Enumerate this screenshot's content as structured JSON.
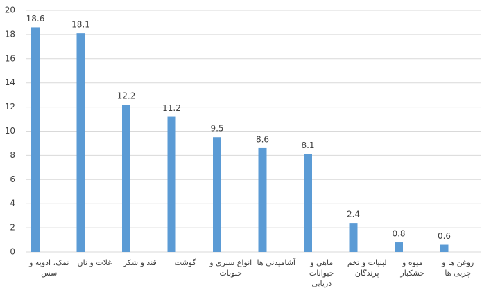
{
  "chart_data": {
    "type": "bar",
    "categories": [
      "نمک، ادویه و سس",
      "غلات و نان",
      "قند و شکر",
      "گوشت",
      "انواع سبزی و حبوبات",
      "آشامیدنی ها",
      "ماهی و حیوانات دریایی",
      "لبنیات و تخم پرندگان",
      "میوه و خشکبار",
      "روغن ها و چربی ها"
    ],
    "values": [
      18.6,
      18.1,
      12.2,
      11.2,
      9.5,
      8.6,
      8.1,
      2.4,
      0.8,
      0.6
    ],
    "color": "#5b9bd5",
    "ylim": [
      0,
      20
    ],
    "yticks": [
      0,
      2,
      4,
      6,
      8,
      10,
      12,
      14,
      16,
      18,
      20
    ],
    "grid": true
  }
}
